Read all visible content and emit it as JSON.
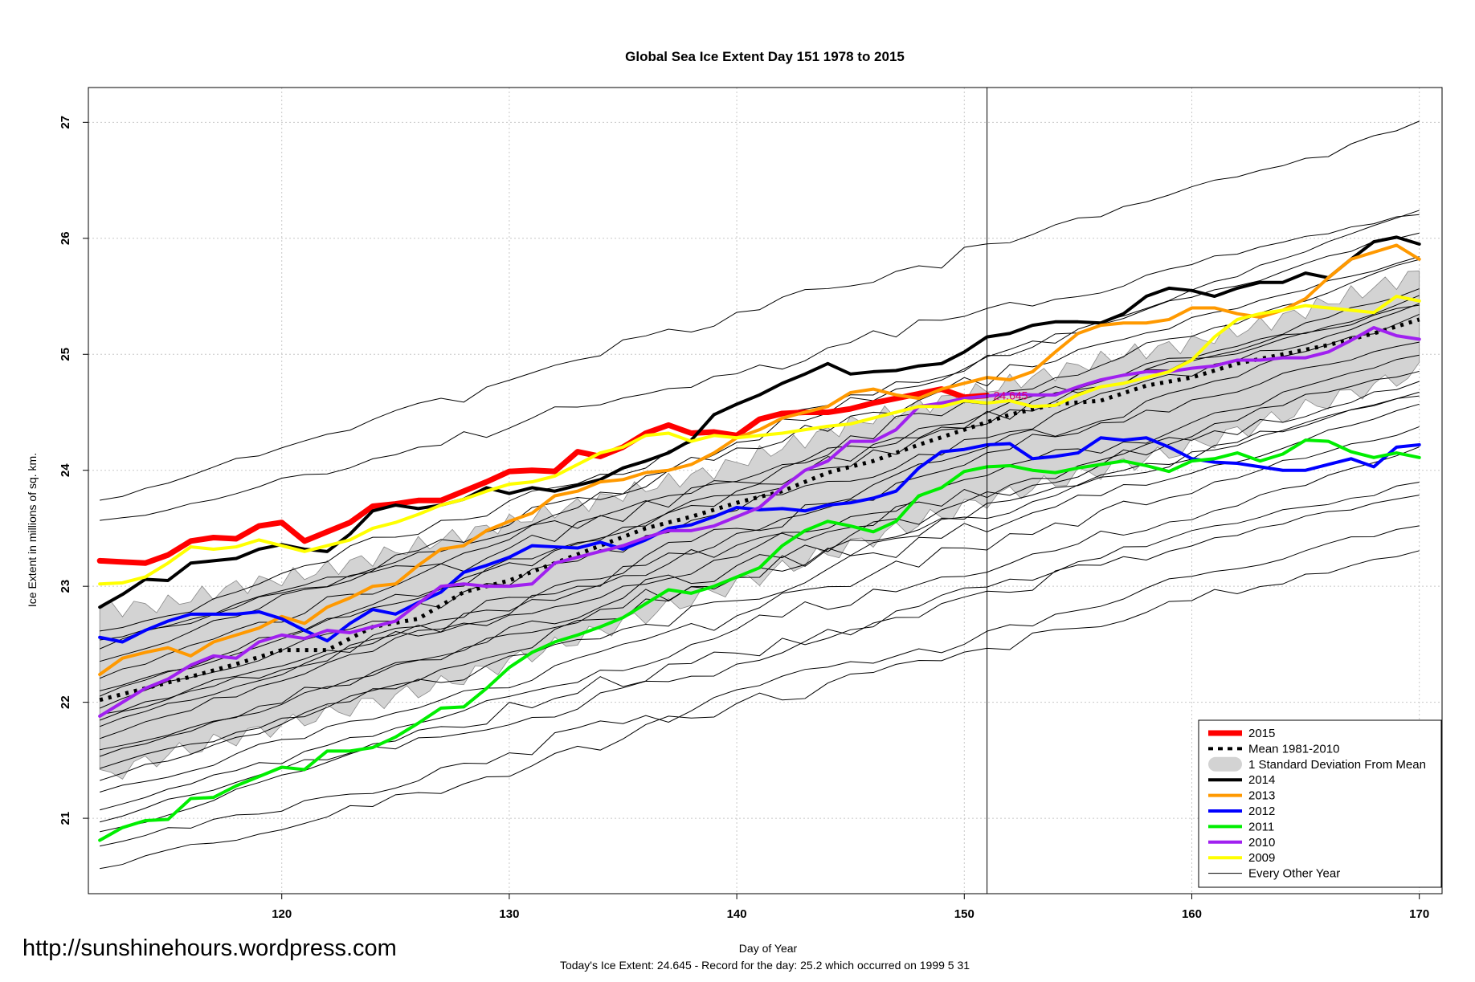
{
  "watermark": "http://sunshinehours.wordpress.com",
  "footer": "Today's Ice Extent: 24.645  - Record for the day: 25.2 which occurred on 1999 5 31",
  "chart_data": {
    "type": "line",
    "title": "Global Sea Ice Extent Day 151 1978 to 2015",
    "xlabel": "Day of Year",
    "ylabel": "Ice Extent in millions of sq. km.",
    "xlim": [
      111.5,
      171
    ],
    "ylim": [
      20.35,
      27.3
    ],
    "xticks": [
      120,
      130,
      140,
      150,
      160,
      170
    ],
    "yticks": [
      21,
      22,
      23,
      24,
      25,
      26,
      27
    ],
    "grid": true,
    "vline_day": 151,
    "annotation": {
      "x": 151,
      "y": 24.645,
      "text": "24.645"
    },
    "legend_position": "bottom-right",
    "legend": [
      {
        "label": "2015",
        "color": "#ff0000",
        "style": "thick"
      },
      {
        "label": "Mean 1981-2010",
        "color": "#000000",
        "style": "dashed"
      },
      {
        "label": "1 Standard Deviation From Mean",
        "color": "#cccccc",
        "style": "band"
      },
      {
        "label": "2014",
        "color": "#000000",
        "style": "solid"
      },
      {
        "label": "2013",
        "color": "#ff9900",
        "style": "solid"
      },
      {
        "label": "2012",
        "color": "#0000ff",
        "style": "solid"
      },
      {
        "label": "2011",
        "color": "#00ee00",
        "style": "solid"
      },
      {
        "label": "2010",
        "color": "#a020f0",
        "style": "solid"
      },
      {
        "label": "2009",
        "color": "#ffff00",
        "style": "solid"
      },
      {
        "label": "Every Other Year",
        "color": "#000000",
        "style": "thin"
      }
    ],
    "band": {
      "x": [
        112,
        115,
        118,
        121,
        124,
        127,
        130,
        133,
        136,
        139,
        142,
        145,
        148,
        151,
        154,
        157,
        160,
        163,
        166,
        170
      ],
      "upper": [
        22.8,
        22.85,
        23.0,
        23.1,
        23.25,
        23.4,
        23.55,
        23.7,
        23.85,
        24.0,
        24.2,
        24.4,
        24.55,
        24.7,
        24.85,
        25.0,
        25.1,
        25.25,
        25.45,
        25.7
      ],
      "lower": [
        21.35,
        21.55,
        21.7,
        21.85,
        22.0,
        22.15,
        22.35,
        22.55,
        22.75,
        22.95,
        23.15,
        23.35,
        23.55,
        23.75,
        23.9,
        24.05,
        24.2,
        24.4,
        24.6,
        24.85
      ]
    },
    "series": [
      {
        "name": "2015",
        "color": "#ff0000",
        "width": 7,
        "x": [
          112,
          113,
          114,
          115,
          116,
          117,
          118,
          119,
          120,
          121,
          122,
          123,
          124,
          125,
          126,
          127,
          128,
          129,
          130,
          131,
          132,
          133,
          134,
          135,
          136,
          137,
          138,
          139,
          140,
          141,
          142,
          143,
          144,
          145,
          146,
          147,
          148,
          149,
          150,
          151
        ],
        "y": [
          23.22,
          23.21,
          23.2,
          23.27,
          23.39,
          23.42,
          23.41,
          23.52,
          23.55,
          23.39,
          23.47,
          23.55,
          23.69,
          23.71,
          23.74,
          23.74,
          23.82,
          23.9,
          23.99,
          24.0,
          23.99,
          24.16,
          24.12,
          24.2,
          24.32,
          24.39,
          24.32,
          24.33,
          24.3,
          24.44,
          24.49,
          24.5,
          24.5,
          24.53,
          24.58,
          24.62,
          24.66,
          24.7,
          24.63,
          24.645
        ]
      },
      {
        "name": "Mean 1981-2010",
        "color": "#000000",
        "width": 5,
        "dash": "4 7",
        "x": [
          112,
          114,
          116,
          118,
          120,
          122,
          124,
          126,
          128,
          130,
          132,
          134,
          136,
          138,
          140,
          142,
          144,
          146,
          148,
          150,
          152,
          154,
          156,
          158,
          160,
          162,
          164,
          166,
          168,
          170
        ],
        "y": [
          22.02,
          22.12,
          22.22,
          22.33,
          22.45,
          22.45,
          22.65,
          22.72,
          22.95,
          23.05,
          23.2,
          23.35,
          23.5,
          23.6,
          23.72,
          23.82,
          23.98,
          24.08,
          24.22,
          24.35,
          24.48,
          24.57,
          24.6,
          24.73,
          24.8,
          24.92,
          25.0,
          25.08,
          25.18,
          25.3
        ]
      },
      {
        "name": "2014",
        "color": "#000000",
        "width": 4,
        "x": [
          112,
          113,
          114,
          115,
          116,
          117,
          118,
          119,
          120,
          121,
          122,
          123,
          124,
          125,
          126,
          127,
          128,
          129,
          130,
          131,
          132,
          133,
          134,
          135,
          136,
          137,
          138,
          139,
          140,
          141,
          142,
          143,
          144,
          145,
          146,
          147,
          148,
          149,
          150,
          151,
          152,
          153,
          154,
          155,
          156,
          157,
          158,
          159,
          160,
          161,
          162,
          163,
          164,
          165,
          166,
          167,
          168,
          169,
          170
        ],
        "y": [
          22.82,
          22.93,
          23.06,
          23.05,
          23.2,
          23.22,
          23.24,
          23.32,
          23.36,
          23.32,
          23.3,
          23.45,
          23.65,
          23.7,
          23.67,
          23.7,
          23.75,
          23.85,
          23.8,
          23.85,
          23.82,
          23.87,
          23.92,
          24.02,
          24.08,
          24.15,
          24.26,
          24.48,
          24.57,
          24.65,
          24.75,
          24.83,
          24.92,
          24.83,
          24.85,
          24.86,
          24.9,
          24.92,
          25.02,
          25.15,
          25.18,
          25.25,
          25.28,
          25.28,
          25.27,
          25.35,
          25.5,
          25.57,
          25.55,
          25.5,
          25.57,
          25.62,
          25.62,
          25.7,
          25.66,
          25.82,
          25.97,
          26.01,
          25.95
        ]
      },
      {
        "name": "2013",
        "color": "#ff9900",
        "width": 4,
        "x": [
          112,
          113,
          114,
          115,
          116,
          117,
          118,
          119,
          120,
          121,
          122,
          123,
          124,
          125,
          126,
          127,
          128,
          129,
          130,
          131,
          132,
          133,
          134,
          135,
          136,
          137,
          138,
          139,
          140,
          141,
          142,
          143,
          144,
          145,
          146,
          147,
          148,
          149,
          150,
          151,
          152,
          153,
          154,
          155,
          156,
          157,
          158,
          159,
          160,
          161,
          162,
          163,
          164,
          165,
          166,
          167,
          168,
          169,
          170
        ],
        "y": [
          22.24,
          22.38,
          22.43,
          22.47,
          22.4,
          22.52,
          22.58,
          22.64,
          22.74,
          22.68,
          22.82,
          22.9,
          23.0,
          23.02,
          23.18,
          23.32,
          23.35,
          23.48,
          23.56,
          23.63,
          23.78,
          23.82,
          23.9,
          23.92,
          23.98,
          24.0,
          24.05,
          24.15,
          24.28,
          24.35,
          24.45,
          24.5,
          24.55,
          24.67,
          24.7,
          24.65,
          24.62,
          24.7,
          24.75,
          24.8,
          24.78,
          24.85,
          25.02,
          25.18,
          25.25,
          25.27,
          25.27,
          25.3,
          25.4,
          25.4,
          25.35,
          25.32,
          25.38,
          25.48,
          25.66,
          25.82,
          25.88,
          25.94,
          25.82
        ]
      },
      {
        "name": "2012",
        "color": "#0000ff",
        "width": 4,
        "x": [
          112,
          113,
          114,
          115,
          116,
          117,
          118,
          119,
          120,
          121,
          122,
          123,
          124,
          125,
          126,
          127,
          128,
          129,
          130,
          131,
          132,
          133,
          134,
          135,
          136,
          137,
          138,
          139,
          140,
          141,
          142,
          143,
          144,
          145,
          146,
          147,
          148,
          149,
          150,
          151,
          152,
          153,
          154,
          155,
          156,
          157,
          158,
          159,
          160,
          161,
          162,
          163,
          164,
          165,
          166,
          167,
          168,
          169,
          170
        ],
        "y": [
          22.56,
          22.52,
          22.62,
          22.7,
          22.76,
          22.76,
          22.76,
          22.78,
          22.72,
          22.62,
          22.53,
          22.68,
          22.8,
          22.76,
          22.86,
          22.95,
          23.12,
          23.18,
          23.25,
          23.35,
          23.34,
          23.33,
          23.38,
          23.32,
          23.4,
          23.5,
          23.53,
          23.6,
          23.68,
          23.66,
          23.67,
          23.65,
          23.7,
          23.72,
          23.76,
          23.82,
          24.02,
          24.16,
          24.18,
          24.22,
          24.23,
          24.1,
          24.12,
          24.15,
          24.28,
          24.26,
          24.28,
          24.2,
          24.1,
          24.07,
          24.06,
          24.03,
          24.0,
          24.0,
          24.05,
          24.1,
          24.03,
          24.2,
          24.22
        ]
      },
      {
        "name": "2011",
        "color": "#00ee00",
        "width": 4,
        "x": [
          112,
          113,
          114,
          115,
          116,
          117,
          118,
          119,
          120,
          121,
          122,
          123,
          124,
          125,
          126,
          127,
          128,
          129,
          130,
          131,
          132,
          133,
          134,
          135,
          136,
          137,
          138,
          139,
          140,
          141,
          142,
          143,
          144,
          145,
          146,
          147,
          148,
          149,
          150,
          151,
          152,
          153,
          154,
          155,
          156,
          157,
          158,
          159,
          160,
          161,
          162,
          163,
          164,
          165,
          166,
          167,
          168,
          169,
          170
        ],
        "y": [
          20.81,
          20.92,
          20.98,
          20.99,
          21.17,
          21.18,
          21.28,
          21.36,
          21.44,
          21.42,
          21.58,
          21.58,
          21.61,
          21.7,
          21.82,
          21.95,
          21.96,
          22.12,
          22.3,
          22.43,
          22.52,
          22.58,
          22.65,
          22.73,
          22.85,
          22.97,
          22.94,
          23.0,
          23.08,
          23.16,
          23.35,
          23.48,
          23.56,
          23.52,
          23.47,
          23.56,
          23.78,
          23.85,
          23.99,
          24.03,
          24.04,
          24.0,
          23.98,
          24.02,
          24.05,
          24.08,
          24.04,
          23.99,
          24.08,
          24.1,
          24.15,
          24.08,
          24.14,
          24.26,
          24.25,
          24.16,
          24.11,
          24.15,
          24.11
        ]
      },
      {
        "name": "2010",
        "color": "#a020f0",
        "width": 4,
        "x": [
          112,
          113,
          114,
          115,
          116,
          117,
          118,
          119,
          120,
          121,
          122,
          123,
          124,
          125,
          126,
          127,
          128,
          129,
          130,
          131,
          132,
          133,
          134,
          135,
          136,
          137,
          138,
          139,
          140,
          141,
          142,
          143,
          144,
          145,
          146,
          147,
          148,
          149,
          150,
          151,
          152,
          153,
          154,
          155,
          156,
          157,
          158,
          159,
          160,
          161,
          162,
          163,
          164,
          165,
          166,
          167,
          168,
          169,
          170
        ],
        "y": [
          21.88,
          22.0,
          22.12,
          22.2,
          22.32,
          22.4,
          22.38,
          22.52,
          22.58,
          22.55,
          22.62,
          22.6,
          22.65,
          22.7,
          22.85,
          23.0,
          23.02,
          23.0,
          23.0,
          23.02,
          23.2,
          23.25,
          23.3,
          23.35,
          23.42,
          23.48,
          23.48,
          23.52,
          23.6,
          23.68,
          23.85,
          24.0,
          24.08,
          24.25,
          24.25,
          24.35,
          24.55,
          24.58,
          24.62,
          24.64,
          24.66,
          24.65,
          24.65,
          24.72,
          24.78,
          24.82,
          24.85,
          24.85,
          24.88,
          24.9,
          24.95,
          24.95,
          24.97,
          24.97,
          25.02,
          25.12,
          25.23,
          25.16,
          25.13
        ]
      },
      {
        "name": "2009",
        "color": "#ffff00",
        "width": 4,
        "x": [
          112,
          113,
          114,
          115,
          116,
          117,
          118,
          119,
          120,
          121,
          122,
          123,
          124,
          125,
          126,
          127,
          128,
          129,
          130,
          131,
          132,
          133,
          134,
          135,
          136,
          137,
          138,
          139,
          140,
          141,
          142,
          143,
          144,
          145,
          146,
          147,
          148,
          149,
          150,
          151,
          152,
          153,
          154,
          155,
          156,
          157,
          158,
          159,
          160,
          161,
          162,
          163,
          164,
          165,
          166,
          167,
          168,
          169,
          170
        ],
        "y": [
          23.02,
          23.03,
          23.08,
          23.2,
          23.34,
          23.32,
          23.34,
          23.4,
          23.35,
          23.3,
          23.35,
          23.4,
          23.5,
          23.55,
          23.62,
          23.7,
          23.75,
          23.82,
          23.88,
          23.9,
          23.95,
          24.05,
          24.15,
          24.2,
          24.3,
          24.32,
          24.25,
          24.3,
          24.28,
          24.3,
          24.32,
          24.35,
          24.38,
          24.4,
          24.45,
          24.5,
          24.55,
          24.55,
          24.6,
          24.58,
          24.6,
          24.55,
          24.56,
          24.65,
          24.72,
          24.75,
          24.8,
          24.85,
          24.95,
          25.15,
          25.3,
          25.35,
          25.38,
          25.42,
          25.4,
          25.38,
          25.36,
          25.5,
          25.46
        ]
      }
    ]
  }
}
